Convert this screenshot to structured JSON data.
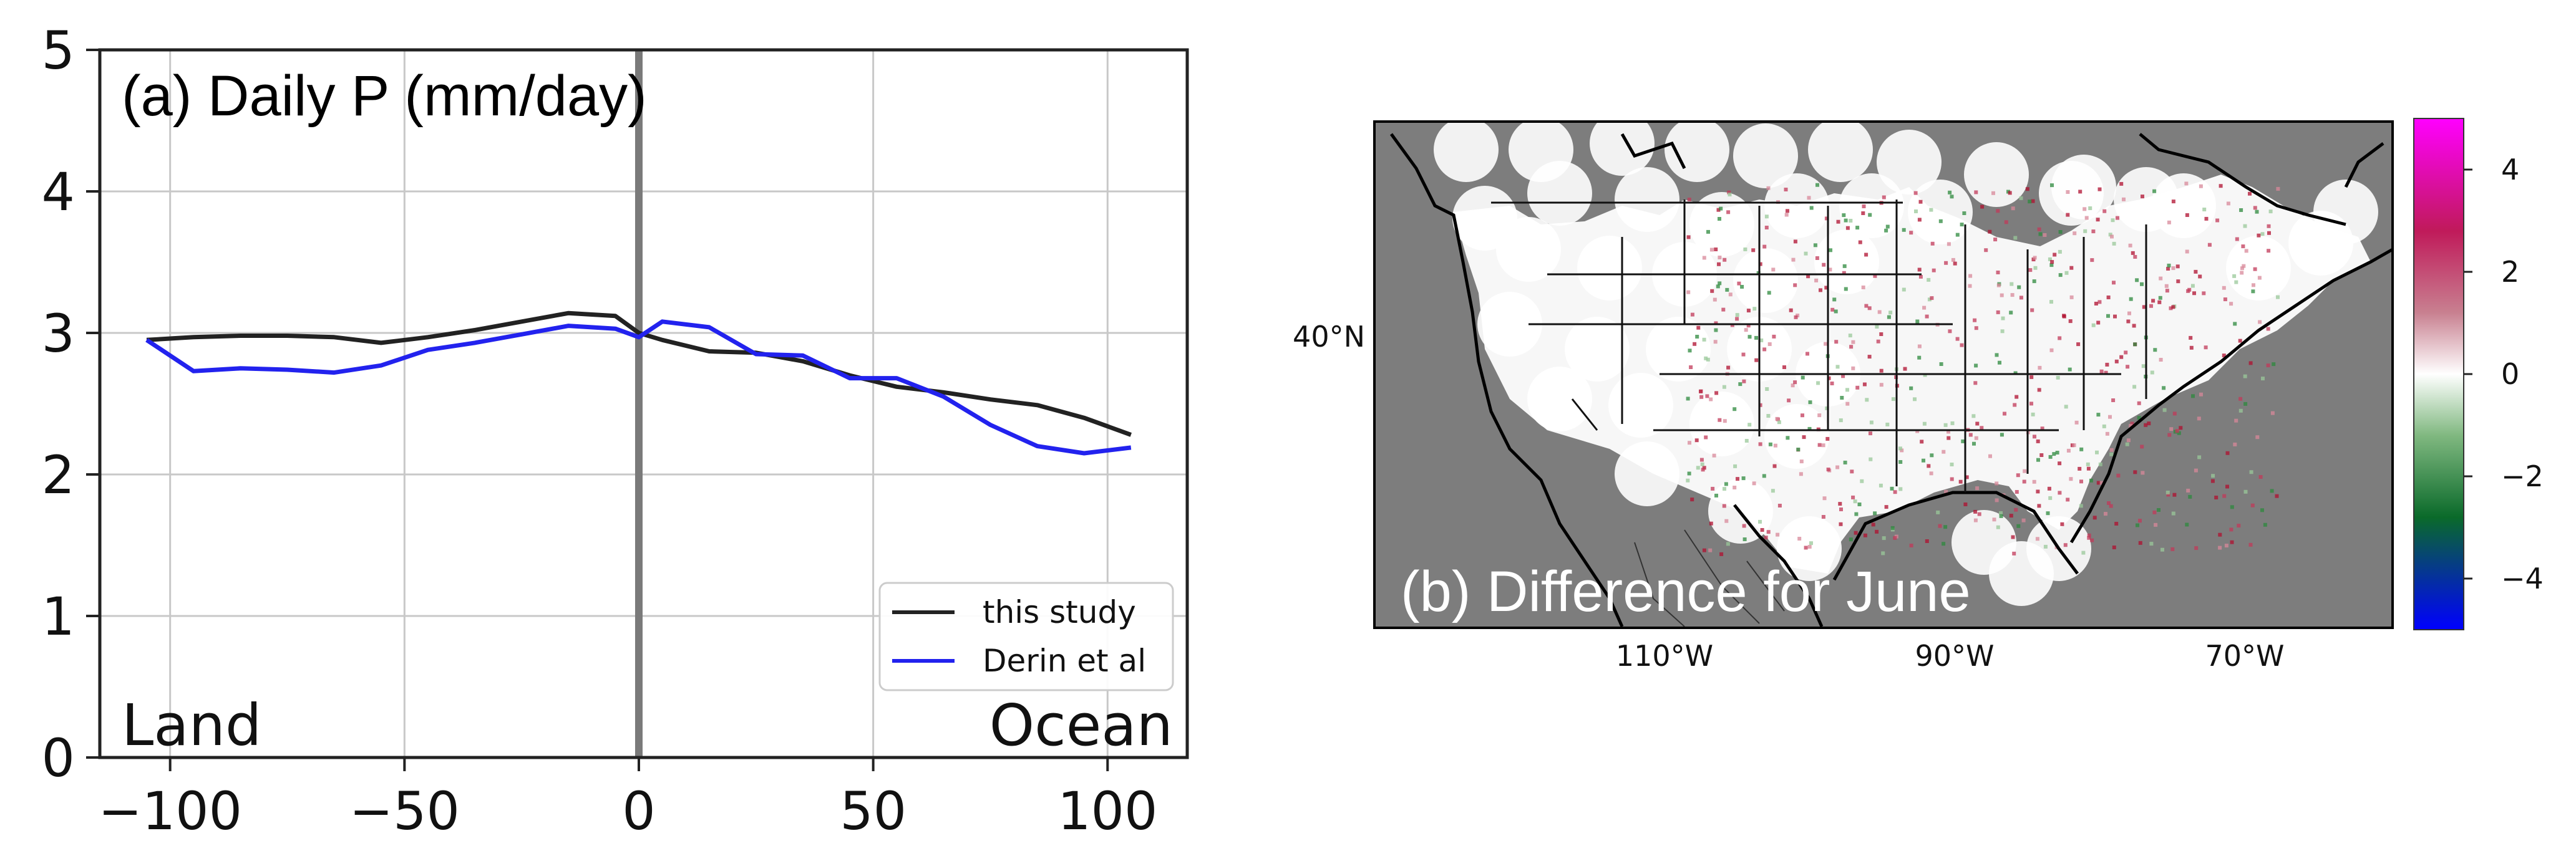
{
  "chart_data": [
    {
      "type": "line",
      "title": "(a) Daily P (mm/day)",
      "xlabel": "",
      "ylabel": "",
      "xlim": [
        -115,
        117
      ],
      "ylim": [
        0,
        5
      ],
      "x_ticks": [
        -100,
        -50,
        0,
        50,
        100
      ],
      "x_tick_labels": [
        "−100",
        "−50",
        "0",
        "50",
        "100"
      ],
      "y_ticks": [
        0,
        1,
        2,
        3,
        4,
        5
      ],
      "y_tick_labels": [
        "0",
        "1",
        "2",
        "3",
        "4",
        "5"
      ],
      "grid": true,
      "vline_x": 0,
      "annotations": {
        "left": "Land",
        "right": "Ocean"
      },
      "legend_position": "lower-right",
      "series": [
        {
          "name": "this study",
          "color": "#222222",
          "x": [
            -105,
            -95,
            -85,
            -75,
            -65,
            -55,
            -45,
            -35,
            -25,
            -15,
            -5,
            0,
            5,
            15,
            25,
            35,
            45,
            55,
            65,
            75,
            85,
            95,
            105
          ],
          "values": [
            2.95,
            2.97,
            2.98,
            2.98,
            2.97,
            2.93,
            2.97,
            3.02,
            3.08,
            3.14,
            3.12,
            3.0,
            2.95,
            2.87,
            2.86,
            2.8,
            2.7,
            2.62,
            2.58,
            2.53,
            2.49,
            2.4,
            2.28
          ]
        },
        {
          "name": "Derin et al",
          "color": "#2222ee",
          "x": [
            -105,
            -95,
            -85,
            -75,
            -65,
            -55,
            -45,
            -35,
            -25,
            -15,
            -5,
            0,
            5,
            15,
            25,
            35,
            45,
            55,
            65,
            75,
            85,
            95,
            105
          ],
          "values": [
            2.95,
            2.73,
            2.75,
            2.74,
            2.72,
            2.77,
            2.88,
            2.93,
            2.99,
            3.05,
            3.03,
            2.97,
            3.08,
            3.04,
            2.85,
            2.84,
            2.68,
            2.68,
            2.55,
            2.35,
            2.2,
            2.15,
            2.19
          ]
        }
      ]
    },
    {
      "type": "heatmap",
      "title": "(b) Difference for June",
      "x_tick_labels": [
        "110°W",
        "90°W",
        "70°W"
      ],
      "y_tick_labels": [
        "40°N"
      ],
      "colorbar": {
        "range": [
          -5,
          5
        ],
        "ticks": [
          4,
          2,
          0,
          -2,
          -4
        ],
        "tick_labels": [
          "4",
          "2",
          "0",
          "−2",
          "−4"
        ],
        "colors": [
          "#ff00ff",
          "#b3143c",
          "#ffffff",
          "#1a7f1a",
          "#0000ff"
        ]
      }
    }
  ]
}
